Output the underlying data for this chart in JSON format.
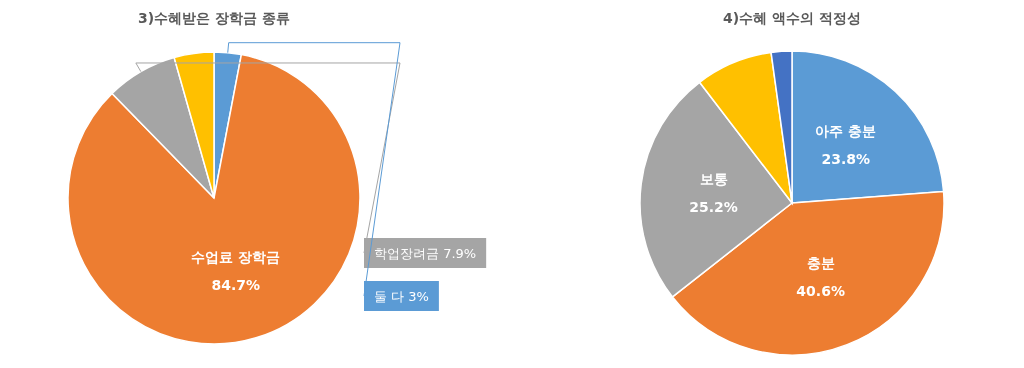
{
  "chart_data": [
    {
      "type": "pie",
      "title": "3)수혜받은 장학금 종류",
      "categories": [
        "둘 다",
        "수업료 장학금",
        "학업장려금",
        null
      ],
      "values": [
        3,
        84.7,
        7.9,
        4.4
      ],
      "colors": [
        "#5b9bd5",
        "#ed7d31",
        "#a5a5a5",
        "#ffc000"
      ],
      "value_labels": [
        "3%",
        "84.7%",
        "7.9%",
        null
      ]
    },
    {
      "type": "pie",
      "title": "4)수혜 액수의 적정성",
      "categories": [
        "아주 충분",
        "충분",
        "보통",
        null,
        null
      ],
      "values": [
        23.8,
        40.6,
        25.2,
        8.2,
        2.2
      ],
      "colors": [
        "#5b9bd5",
        "#ed7d31",
        "#a5a5a5",
        "#ffc000",
        "#4472c4"
      ],
      "value_labels": [
        "23.8%",
        "40.6%",
        "25.2%",
        null,
        null
      ]
    }
  ]
}
